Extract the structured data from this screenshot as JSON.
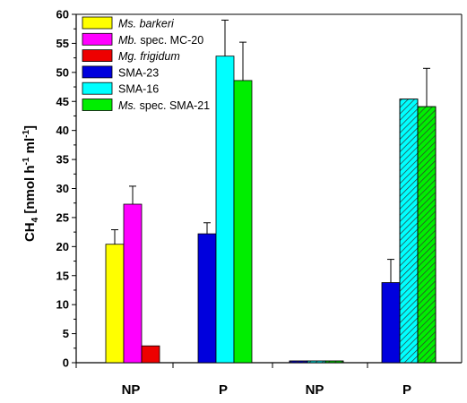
{
  "chart_data": {
    "type": "bar",
    "ylabel_main": "CH",
    "ylabel_sub": "4",
    "ylabel_unit_pre": " [nmol h",
    "ylabel_sup1": "-1",
    "ylabel_unit_mid": " ml",
    "ylabel_sup2": "-1",
    "ylabel_unit_post": "]",
    "ylim": [
      0,
      60
    ],
    "yticks": [
      "0",
      "5",
      "10",
      "15",
      "20",
      "25",
      "30",
      "35",
      "40",
      "45",
      "50",
      "55",
      "60"
    ],
    "legend_position": "top-left",
    "legend": [
      {
        "italic": "Ms.",
        "rest": " barkeri",
        "italic_all": true,
        "color": "#ffff00"
      },
      {
        "italic": "Mb.",
        "rest": " spec. MC-20",
        "italic_all": false,
        "color": "#ff00ff"
      },
      {
        "italic": "Mg.",
        "rest": " frigidum",
        "italic_all": true,
        "color": "#ee0000"
      },
      {
        "italic": "",
        "rest": "SMA-23",
        "italic_all": false,
        "color": "#0000dd"
      },
      {
        "italic": "",
        "rest": "SMA-16",
        "italic_all": false,
        "color": "#00ffff"
      },
      {
        "italic": "Ms.",
        "rest": " spec. SMA-21",
        "italic_all": false,
        "color": "#00ee00"
      }
    ],
    "groups": [
      {
        "label": "NP",
        "bars": [
          {
            "series": 0,
            "value": 20.4,
            "error": 2.5
          },
          {
            "series": 1,
            "value": 27.3,
            "error": 3.1
          },
          {
            "series": 2,
            "value": 2.9,
            "error": 0
          }
        ]
      },
      {
        "label": "P",
        "bars": [
          {
            "series": 3,
            "value": 22.2,
            "error": 1.9
          },
          {
            "series": 4,
            "value": 52.8,
            "error": 6.2
          },
          {
            "series": 5,
            "value": 48.6,
            "error": 6.6
          }
        ]
      },
      {
        "label": "NP",
        "bars": [
          {
            "series": 3,
            "value": 0.3,
            "error": 0,
            "hatched": true
          },
          {
            "series": 4,
            "value": 0.3,
            "error": 0,
            "hatched": true
          },
          {
            "series": 5,
            "value": 0.3,
            "error": 0,
            "hatched": true
          }
        ]
      },
      {
        "label": "P",
        "bars": [
          {
            "series": 3,
            "value": 13.8,
            "error": 4.0
          },
          {
            "series": 4,
            "value": 45.4,
            "error": 0,
            "hatched": true
          },
          {
            "series": 5,
            "value": 44.1,
            "error": 6.6,
            "hatched": true
          }
        ]
      }
    ]
  }
}
